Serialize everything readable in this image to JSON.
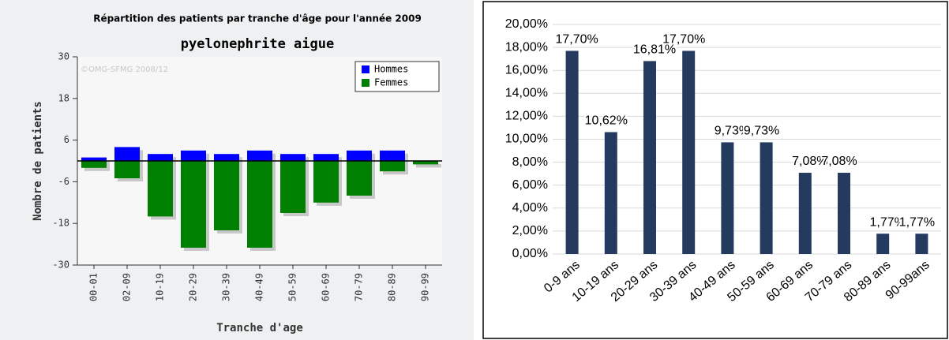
{
  "chart_data": [
    {
      "type": "bar",
      "title": "Répartition des patients par tranche d'âge pour l'année 2009",
      "subtitle": "pyelonephrite aigue",
      "watermark": "©OMG-SFMG 2008/12",
      "y_label": "Nombre de patients",
      "x_label": "Tranche d'age",
      "categories": [
        "00-01",
        "02-09",
        "10-19",
        "20-29",
        "30-39",
        "40-49",
        "50-59",
        "60-69",
        "70-79",
        "80-89",
        "90-99"
      ],
      "series": [
        {
          "name": "Hommes",
          "color": "#0000ff",
          "values": [
            1,
            4,
            2,
            3,
            2,
            3,
            2,
            2,
            3,
            3,
            0
          ]
        },
        {
          "name": "Femmes",
          "color": "#008000",
          "values": [
            -2,
            -5,
            -16,
            -25,
            -20,
            -25,
            -15,
            -12,
            -10,
            -3,
            -1
          ]
        }
      ],
      "ylim": [
        -30,
        30
      ],
      "yticks": [
        -30,
        -18,
        -6,
        6,
        18,
        30
      ],
      "legend": "top-right"
    },
    {
      "type": "bar",
      "categories": [
        "0-9 ans",
        "10-19 ans",
        "20-29 ans",
        "30-39 ans",
        "40-49 ans",
        "50-59 ans",
        "60-69 ans",
        "70-79 ans",
        "80-89 ans",
        "90-99ans"
      ],
      "values": [
        17.7,
        10.62,
        16.81,
        17.7,
        9.73,
        9.73,
        7.08,
        7.08,
        1.77,
        1.77
      ],
      "value_labels": [
        "17,70%",
        "10,62%",
        "16,81%",
        "17,70%",
        "9,73%",
        "9,73%",
        "7,08%",
        "7,08%",
        "1,77%",
        "1,77%"
      ],
      "color": "#243a5e",
      "ylim": [
        0,
        20
      ],
      "yticks": [
        {
          "value": 0,
          "label": "0,00%"
        },
        {
          "value": 2,
          "label": "2,00%"
        },
        {
          "value": 4,
          "label": "4,00%"
        },
        {
          "value": 6,
          "label": "6,00%"
        },
        {
          "value": 8,
          "label": "8,00%"
        },
        {
          "value": 10,
          "label": "10,00%"
        },
        {
          "value": 12,
          "label": "12,00%"
        },
        {
          "value": 14,
          "label": "14,00%"
        },
        {
          "value": 16,
          "label": "16,00%"
        },
        {
          "value": 18,
          "label": "18,00%"
        },
        {
          "value": 20,
          "label": "20,00%"
        }
      ],
      "grid": true
    }
  ]
}
